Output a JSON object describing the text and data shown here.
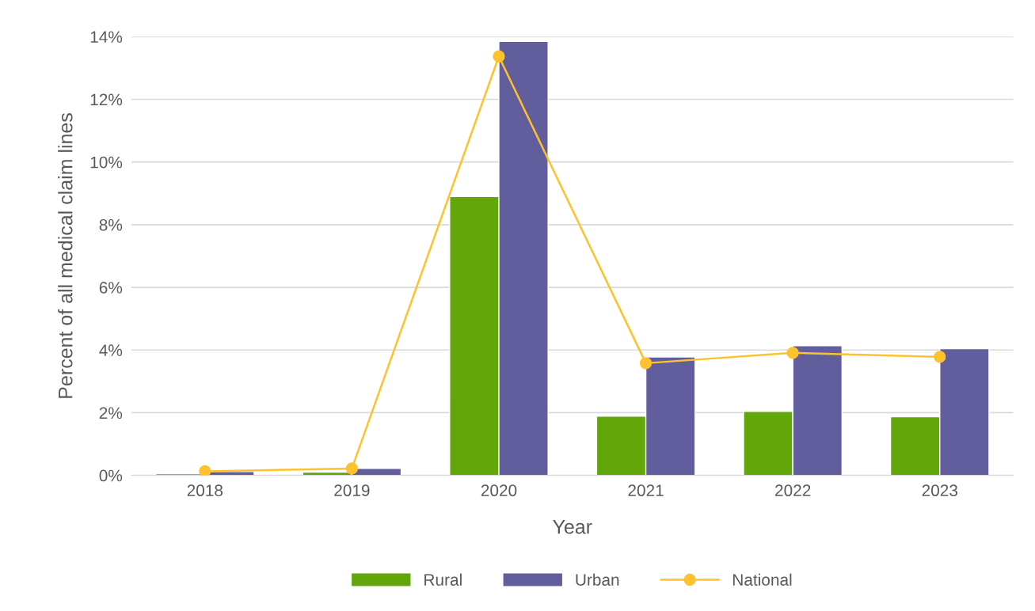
{
  "chart_data": {
    "type": "bar",
    "xlabel": "Year",
    "ylabel": "Percent of all medical claim lines",
    "categories": [
      "2018",
      "2019",
      "2020",
      "2021",
      "2022",
      "2023"
    ],
    "series": [
      {
        "name": "Rural",
        "color": "#62a60a",
        "values": [
          0.05,
          0.1,
          8.9,
          1.89,
          2.04,
          1.87
        ]
      },
      {
        "name": "Urban",
        "color": "#625d9c",
        "values": [
          0.12,
          0.22,
          13.85,
          3.78,
          4.14,
          4.04
        ]
      },
      {
        "name": "National",
        "type": "line",
        "color": "#fdc22e",
        "values": [
          0.13,
          0.22,
          13.37,
          3.58,
          3.91,
          3.78
        ],
        "marker": "circle",
        "line_style": "solid"
      }
    ],
    "ylim": [
      0,
      14
    ],
    "yticks": [
      {
        "value": 0,
        "label": "0%"
      },
      {
        "value": 2,
        "label": "2%"
      },
      {
        "value": 4,
        "label": "4%"
      },
      {
        "value": 6,
        "label": "6%"
      },
      {
        "value": 8,
        "label": "8%"
      },
      {
        "value": 10,
        "label": "10%"
      },
      {
        "value": 12,
        "label": "12%"
      },
      {
        "value": 14,
        "label": "14%"
      }
    ],
    "grid": "y",
    "legend": "bottom"
  }
}
